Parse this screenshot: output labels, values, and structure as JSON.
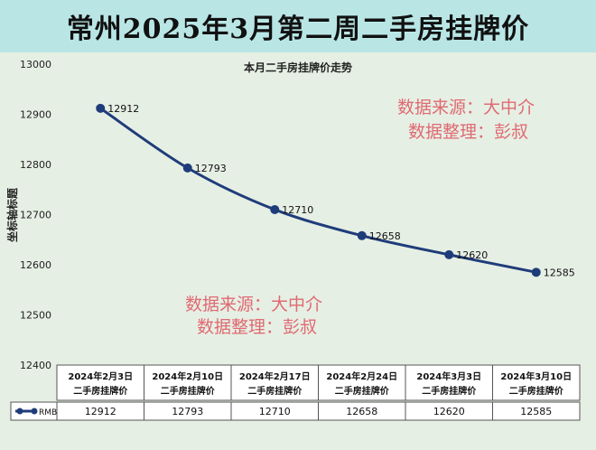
{
  "page_title": "常州2025年3月第二周二手房挂牌价",
  "watermarks": {
    "top_line1": "数据来源：大中介",
    "top_line2": "数据整理：彭叔",
    "bottom_line1": "数据来源：大中介",
    "bottom_line2": "数据整理：彭叔"
  },
  "colors": {
    "series": "#1f3c7a",
    "title_band": "#b9e6e5",
    "panel": "#e6efe4",
    "watermark": "#e06a72"
  },
  "chart_data": {
    "type": "line",
    "title": "本月二手房挂牌价走势",
    "ylabel": "坐标轴标题",
    "xlabel": "",
    "ylim": [
      12400,
      13000
    ],
    "yticks": [
      "12400",
      "12500",
      "12600",
      "12700",
      "12800",
      "12900",
      "13000"
    ],
    "grid": false,
    "categories": [
      [
        "2024年2月3日",
        "二手房挂牌价"
      ],
      [
        "2024年2月10日",
        "二手房挂牌价"
      ],
      [
        "2024年2月17日",
        "二手房挂牌价"
      ],
      [
        "2024年2月24日",
        "二手房挂牌价"
      ],
      [
        "2024年3月3日",
        "二手房挂牌价"
      ],
      [
        "2024年3月10日",
        "二手房挂牌价"
      ]
    ],
    "series": [
      {
        "name": "RMB",
        "values": [
          12912,
          12793,
          12710,
          12658,
          12620,
          12585
        ]
      }
    ],
    "data_table": true
  }
}
